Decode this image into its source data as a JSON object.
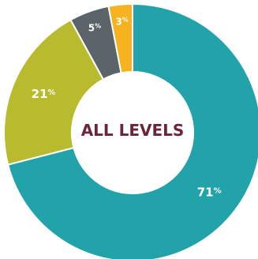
{
  "chart_data": {
    "type": "pie",
    "center_label": "ALL LEVELS",
    "slices": [
      {
        "value": 71,
        "label": "71",
        "suffix": "%",
        "color": "#22a3aa"
      },
      {
        "value": 21,
        "label": "21",
        "suffix": "%",
        "color": "#b8bb2e"
      },
      {
        "value": 5,
        "label": "5",
        "suffix": "%",
        "color": "#5a6469"
      },
      {
        "value": 3,
        "label": "3",
        "suffix": "%",
        "color": "#f7b220"
      }
    ]
  }
}
